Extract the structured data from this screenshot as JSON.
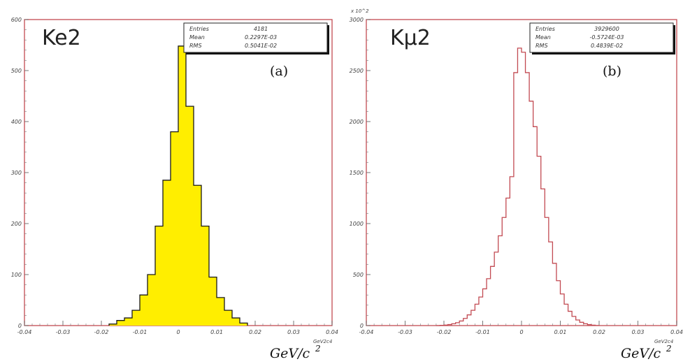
{
  "chart_data": [
    {
      "id": "a",
      "type": "bar",
      "panel_label": "(a)",
      "title": "Ke2",
      "xlabel": "GeV/c",
      "xlabel_sup": "2",
      "x_unit_tag": "GeV2c4",
      "y_multiplier": "",
      "xlim": [
        -0.04,
        0.04
      ],
      "ylim": [
        0,
        600
      ],
      "xticks": [
        "-0.04",
        "-0.03",
        "-0.02",
        "-0.01",
        "0",
        "0.01",
        "0.02",
        "0.03",
        "0.04"
      ],
      "yticks": [
        [
          "0",
          0
        ],
        [
          "100",
          100
        ],
        [
          "200",
          200
        ],
        [
          "300",
          300
        ],
        [
          "400",
          400
        ],
        [
          "500",
          500
        ],
        [
          "600",
          600
        ]
      ],
      "fill_color": "#ffee00",
      "line_color": "#1a1a1a",
      "frame_color": "#c24a52",
      "stats": [
        {
          "label": "Entries",
          "value": "4181"
        },
        {
          "label": "Mean",
          "value": "0.2297E-03"
        },
        {
          "label": "RMS",
          "value": "0.5041E-02"
        }
      ],
      "bins": [
        {
          "x0": -0.018,
          "x1": -0.016,
          "y": 3
        },
        {
          "x0": -0.016,
          "x1": -0.014,
          "y": 10
        },
        {
          "x0": -0.014,
          "x1": -0.012,
          "y": 15
        },
        {
          "x0": -0.012,
          "x1": -0.01,
          "y": 30
        },
        {
          "x0": -0.01,
          "x1": -0.008,
          "y": 60
        },
        {
          "x0": -0.008,
          "x1": -0.006,
          "y": 100
        },
        {
          "x0": -0.006,
          "x1": -0.004,
          "y": 195
        },
        {
          "x0": -0.004,
          "x1": -0.002,
          "y": 285
        },
        {
          "x0": -0.002,
          "x1": 0.0,
          "y": 380
        },
        {
          "x0": 0.0,
          "x1": 0.002,
          "y": 548
        },
        {
          "x0": 0.002,
          "x1": 0.004,
          "y": 430
        },
        {
          "x0": 0.004,
          "x1": 0.006,
          "y": 275
        },
        {
          "x0": 0.006,
          "x1": 0.008,
          "y": 195
        },
        {
          "x0": 0.008,
          "x1": 0.01,
          "y": 95
        },
        {
          "x0": 0.01,
          "x1": 0.012,
          "y": 55
        },
        {
          "x0": 0.012,
          "x1": 0.014,
          "y": 30
        },
        {
          "x0": 0.014,
          "x1": 0.016,
          "y": 15
        },
        {
          "x0": 0.016,
          "x1": 0.018,
          "y": 5
        }
      ]
    },
    {
      "id": "b",
      "type": "bar",
      "panel_label": "(b)",
      "title": "Kμ2",
      "xlabel": "GeV/c",
      "xlabel_sup": "2",
      "x_unit_tag": "GeV2c4",
      "y_multiplier": "x 10^2",
      "xlim": [
        -0.04,
        0.04
      ],
      "ylim": [
        0,
        3000
      ],
      "xticks": [
        "-0.04",
        "-0.03",
        "-0.02",
        "-0.01",
        "0",
        "0.01",
        "0.02",
        "0.03",
        "0.04"
      ],
      "yticks": [
        [
          "0",
          0
        ],
        [
          "500",
          500
        ],
        [
          "1000",
          1000
        ],
        [
          "1500",
          1500
        ],
        [
          "2000",
          2000
        ],
        [
          "2500",
          2500
        ],
        [
          "3000",
          3000
        ]
      ],
      "fill_color": "none",
      "line_color": "#c24a52",
      "frame_color": "#c24a52",
      "stats": [
        {
          "label": "Entries",
          "value": "3929600"
        },
        {
          "label": "Mean",
          "value": "-0.5724E-03"
        },
        {
          "label": "RMS",
          "value": "0.4839E-02"
        }
      ],
      "bins": [
        {
          "x0": -0.022,
          "x1": -0.021,
          "y": 0
        },
        {
          "x0": -0.021,
          "x1": -0.02,
          "y": 2
        },
        {
          "x0": -0.02,
          "x1": -0.019,
          "y": 5
        },
        {
          "x0": -0.019,
          "x1": -0.018,
          "y": 10
        },
        {
          "x0": -0.018,
          "x1": -0.017,
          "y": 18
        },
        {
          "x0": -0.017,
          "x1": -0.016,
          "y": 28
        },
        {
          "x0": -0.016,
          "x1": -0.015,
          "y": 45
        },
        {
          "x0": -0.015,
          "x1": -0.014,
          "y": 70
        },
        {
          "x0": -0.014,
          "x1": -0.013,
          "y": 105
        },
        {
          "x0": -0.013,
          "x1": -0.012,
          "y": 150
        },
        {
          "x0": -0.012,
          "x1": -0.011,
          "y": 210
        },
        {
          "x0": -0.011,
          "x1": -0.01,
          "y": 280
        },
        {
          "x0": -0.01,
          "x1": -0.009,
          "y": 360
        },
        {
          "x0": -0.009,
          "x1": -0.008,
          "y": 460
        },
        {
          "x0": -0.008,
          "x1": -0.007,
          "y": 580
        },
        {
          "x0": -0.007,
          "x1": -0.006,
          "y": 720
        },
        {
          "x0": -0.006,
          "x1": -0.005,
          "y": 880
        },
        {
          "x0": -0.005,
          "x1": -0.004,
          "y": 1060
        },
        {
          "x0": -0.004,
          "x1": -0.003,
          "y": 1250
        },
        {
          "x0": -0.003,
          "x1": -0.002,
          "y": 1460
        },
        {
          "x0": -0.002,
          "x1": -0.001,
          "y": 2480
        },
        {
          "x0": -0.001,
          "x1": 0.0,
          "y": 2720
        },
        {
          "x0": 0.0,
          "x1": 0.001,
          "y": 2680
        },
        {
          "x0": 0.001,
          "x1": 0.002,
          "y": 2480
        },
        {
          "x0": 0.002,
          "x1": 0.003,
          "y": 2200
        },
        {
          "x0": 0.003,
          "x1": 0.004,
          "y": 1950
        },
        {
          "x0": 0.004,
          "x1": 0.005,
          "y": 1660
        },
        {
          "x0": 0.005,
          "x1": 0.006,
          "y": 1340
        },
        {
          "x0": 0.006,
          "x1": 0.007,
          "y": 1060
        },
        {
          "x0": 0.007,
          "x1": 0.008,
          "y": 820
        },
        {
          "x0": 0.008,
          "x1": 0.009,
          "y": 610
        },
        {
          "x0": 0.009,
          "x1": 0.01,
          "y": 440
        },
        {
          "x0": 0.01,
          "x1": 0.011,
          "y": 310
        },
        {
          "x0": 0.011,
          "x1": 0.012,
          "y": 210
        },
        {
          "x0": 0.012,
          "x1": 0.013,
          "y": 140
        },
        {
          "x0": 0.013,
          "x1": 0.014,
          "y": 90
        },
        {
          "x0": 0.014,
          "x1": 0.015,
          "y": 55
        },
        {
          "x0": 0.015,
          "x1": 0.016,
          "y": 32
        },
        {
          "x0": 0.016,
          "x1": 0.017,
          "y": 18
        },
        {
          "x0": 0.017,
          "x1": 0.018,
          "y": 9
        },
        {
          "x0": 0.018,
          "x1": 0.019,
          "y": 4
        },
        {
          "x0": 0.019,
          "x1": 0.02,
          "y": 1
        }
      ]
    }
  ]
}
